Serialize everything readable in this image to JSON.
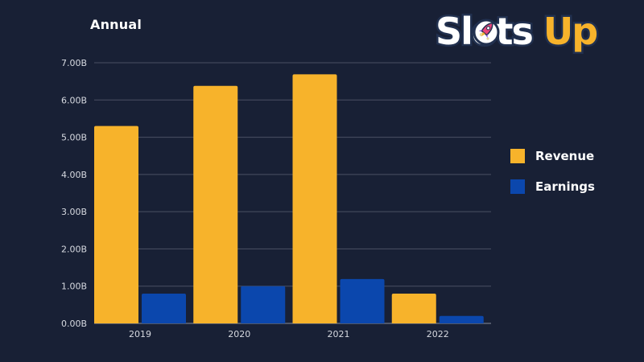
{
  "header": {
    "logo_part_a": "Slots",
    "logo_part_b": "Up"
  },
  "colors": {
    "background": "#182035",
    "revenue": "#f7b32b",
    "earnings": "#0b47ad",
    "gridline": "#4a5164",
    "text": "#ffffff"
  },
  "icons": {
    "logo_rocket": "rocket-icon"
  },
  "chart_data": {
    "type": "bar",
    "title": "Annual",
    "xlabel": "",
    "ylabel": "",
    "categories": [
      "2019",
      "2020",
      "2021",
      "2022"
    ],
    "series": [
      {
        "name": "Revenue",
        "color": "#f7b32b",
        "values": [
          5.3,
          6.38,
          6.69,
          0.8
        ]
      },
      {
        "name": "Earnings",
        "color": "#0b47ad",
        "values": [
          0.8,
          1.0,
          1.19,
          0.2
        ]
      }
    ],
    "ylim": [
      0,
      7
    ],
    "yticks": [
      0,
      1,
      2,
      3,
      4,
      5,
      6,
      7
    ],
    "ytick_labels": [
      "0.00B",
      "1.00B",
      "2.00B",
      "3.00B",
      "4.00B",
      "5.00B",
      "6.00B",
      "7.00B"
    ],
    "grid": true,
    "legend_position": "right"
  }
}
